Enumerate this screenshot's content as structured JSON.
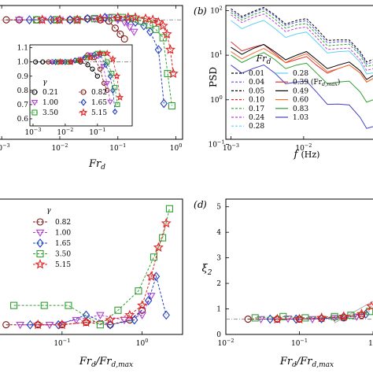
{
  "chart_data": [
    {
      "type": "scatter",
      "panel_label": "",
      "xlabel": "Fr",
      "xlabel_sub": "d",
      "xscale": "log",
      "xlim": [
        0.0008,
        1.3
      ],
      "ylim": [
        0.0,
        1.12
      ],
      "x_ticks": [
        {
          "base": "10",
          "exp": "−3"
        },
        {
          "base": "10",
          "exp": "−2"
        },
        {
          "base": "10",
          "exp": "−1"
        },
        {
          "base": "10",
          "exp": "0"
        }
      ],
      "reference_line": 1.0,
      "series": [
        {
          "marker": "circle",
          "color": "#7a1010",
          "x": [
            0.0012,
            0.002,
            0.004,
            0.008,
            0.015,
            0.03,
            0.05,
            0.07,
            0.09,
            0.11,
            0.13
          ],
          "y": [
            1.0,
            1.0,
            1.0,
            1.0,
            1.0,
            1.01,
            1.0,
            0.99,
            0.93,
            0.88,
            0.84
          ]
        },
        {
          "marker": "triangle",
          "color": "#b040d0",
          "x": [
            0.002,
            0.005,
            0.01,
            0.02,
            0.04,
            0.07,
            0.1,
            0.13,
            0.16,
            0.19
          ],
          "y": [
            1.0,
            1.0,
            1.0,
            1.0,
            1.01,
            1.02,
            1.0,
            0.98,
            0.94,
            0.9
          ]
        },
        {
          "marker": "diamond",
          "color": "#2040c0",
          "x": [
            0.003,
            0.007,
            0.015,
            0.03,
            0.06,
            0.1,
            0.15,
            0.2,
            0.28,
            0.36,
            0.5,
            0.62
          ],
          "y": [
            1.0,
            1.0,
            1.0,
            1.01,
            1.02,
            1.02,
            1.0,
            0.98,
            0.95,
            0.9,
            0.75,
            0.3
          ]
        },
        {
          "marker": "square",
          "color": "#30a030",
          "x": [
            0.004,
            0.009,
            0.02,
            0.04,
            0.08,
            0.12,
            0.18,
            0.25,
            0.35,
            0.45,
            0.6,
            0.72,
            0.85
          ],
          "y": [
            1.0,
            1.0,
            1.0,
            1.01,
            1.02,
            1.02,
            1.01,
            0.99,
            0.96,
            0.92,
            0.85,
            0.55,
            0.28
          ]
        },
        {
          "marker": "star",
          "color": "#e02020",
          "x": [
            0.005,
            0.01,
            0.02,
            0.05,
            0.1,
            0.15,
            0.2,
            0.3,
            0.4,
            0.5,
            0.6,
            0.7,
            0.8,
            0.9
          ],
          "y": [
            1.0,
            1.0,
            1.0,
            1.01,
            1.02,
            1.02,
            1.02,
            1.01,
            1.0,
            0.98,
            0.95,
            0.88,
            0.75,
            0.55
          ]
        }
      ]
    },
    {
      "type": "line",
      "panel_label": "b",
      "xlabel": "f",
      "xlabel_units": "(Hz)",
      "ylabel": "PSD",
      "xscale": "log",
      "yscale": "log",
      "xlim": [
        0.00085,
        0.09
      ],
      "ylim": [
        0.13,
        130
      ],
      "x_ticks": [
        {
          "base": "10",
          "exp": "−3"
        },
        {
          "base": "10",
          "exp": "−2"
        }
      ],
      "y_ticks": [
        {
          "base": "10",
          "exp": "−1"
        },
        {
          "base": "10",
          "exp": "0"
        },
        {
          "base": "10",
          "exp": "1"
        },
        {
          "base": "10",
          "exp": "2"
        }
      ],
      "legend_title": "Fr",
      "legend_title_sub": "d",
      "legend_col1": [
        {
          "label": "0.01",
          "color": "#000000",
          "dash": true
        },
        {
          "label": "0.04",
          "color": "#5050e0",
          "dash": true
        },
        {
          "label": "0.05",
          "color": "#000000",
          "dash": true
        },
        {
          "label": "0.10",
          "color": "#e02020",
          "dash": true
        },
        {
          "label": "0.17",
          "color": "#30a030",
          "dash": true
        },
        {
          "label": "0.24",
          "color": "#c040d0",
          "dash": true
        },
        {
          "label": "0.28",
          "color": "#60d0f0",
          "dash": true
        }
      ],
      "legend_col2": [
        {
          "label": "0.28",
          "color": "#60d0f0",
          "dash": false
        },
        {
          "label": "0.39 (Fr",
          "label_sub": "d,max",
          "label_end": ")",
          "color": "#e03030",
          "dash": false
        },
        {
          "label": "0.49",
          "color": "#000000",
          "dash": false
        },
        {
          "label": "0.60",
          "color": "#f07030",
          "dash": false
        },
        {
          "label": "0.83",
          "color": "#30a030",
          "dash": false
        },
        {
          "label": "1.03",
          "color": "#4040c0",
          "dash": false
        }
      ],
      "series": [
        {
          "color": "#000000",
          "dash": true,
          "x": [
            0.001,
            0.002,
            0.004,
            0.008,
            0.015,
            0.03,
            0.06,
            0.09
          ],
          "y": [
            110,
            95,
            80,
            60,
            40,
            22,
            12,
            8
          ]
        },
        {
          "color": "#5050e0",
          "dash": true,
          "x": [
            0.001,
            0.002,
            0.004,
            0.008,
            0.015,
            0.03,
            0.06,
            0.09
          ],
          "y": [
            100,
            90,
            75,
            55,
            35,
            20,
            11,
            7
          ]
        },
        {
          "color": "#30a030",
          "dash": true,
          "x": [
            0.001,
            0.002,
            0.004,
            0.008,
            0.015,
            0.03,
            0.06,
            0.09
          ],
          "y": [
            90,
            80,
            65,
            48,
            30,
            17,
            10,
            6
          ]
        },
        {
          "color": "#c040d0",
          "dash": true,
          "x": [
            0.001,
            0.002,
            0.004,
            0.008,
            0.015,
            0.03,
            0.06,
            0.09
          ],
          "y": [
            80,
            70,
            55,
            40,
            25,
            14,
            8,
            5
          ]
        },
        {
          "color": "#60d0f0",
          "dash": false,
          "x": [
            0.001,
            0.002,
            0.004,
            0.008,
            0.015,
            0.03,
            0.06,
            0.09
          ],
          "y": [
            60,
            50,
            40,
            30,
            20,
            12,
            7,
            4
          ]
        },
        {
          "color": "#e03030",
          "dash": false,
          "x": [
            0.001,
            0.002,
            0.004,
            0.008,
            0.015,
            0.03,
            0.06,
            0.09
          ],
          "y": [
            20,
            15,
            11,
            8,
            6,
            5,
            4,
            3
          ]
        },
        {
          "color": "#000000",
          "dash": false,
          "x": [
            0.001,
            0.002,
            0.004,
            0.008,
            0.015,
            0.03,
            0.06,
            0.09
          ],
          "y": [
            15,
            14,
            12,
            10,
            8,
            6,
            4.5,
            3.5
          ]
        },
        {
          "color": "#f07030",
          "dash": false,
          "x": [
            0.001,
            0.002,
            0.004,
            0.008,
            0.015,
            0.03,
            0.06,
            0.09
          ],
          "y": [
            12,
            11,
            10,
            9,
            7,
            5,
            4,
            3
          ]
        },
        {
          "color": "#30a030",
          "dash": false,
          "x": [
            0.001,
            0.002,
            0.004,
            0.008,
            0.015,
            0.03,
            0.06,
            0.09
          ],
          "y": [
            10,
            9,
            8,
            6,
            4,
            2.5,
            1.5,
            1.0
          ]
        },
        {
          "color": "#4040c0",
          "dash": false,
          "x": [
            0.001,
            0.002,
            0.004,
            0.008,
            0.015,
            0.03,
            0.06,
            0.09
          ],
          "y": [
            6,
            5,
            4,
            2.5,
            1.5,
            0.8,
            0.4,
            0.25
          ]
        }
      ]
    },
    {
      "type": "scatter",
      "panel_label": "",
      "xlabel": "Fr",
      "xlabel_sub": "d",
      "xlabel_denom": "Fr",
      "xlabel_denom_sub": "d,max",
      "xscale": "log",
      "xlim": [
        0.015,
        3.2
      ],
      "ylim": [
        0.8,
        3.6
      ],
      "x_ticks": [
        {
          "base": "10",
          "exp": "−1"
        },
        {
          "base": "10",
          "exp": "0"
        }
      ],
      "legend_title": "γ",
      "series": [
        {
          "label": "0.82",
          "marker": "circle",
          "color": "#7a1010",
          "x": [
            0.02,
            0.05,
            0.1,
            0.2,
            0.4,
            0.7,
            1.0
          ],
          "y": [
            1.0,
            1.0,
            1.0,
            1.05,
            1.0,
            1.1,
            1.3
          ]
        },
        {
          "label": "1.00",
          "marker": "triangle",
          "color": "#b040d0",
          "x": [
            0.03,
            0.07,
            0.15,
            0.3,
            0.6,
            1.0,
            1.3
          ],
          "y": [
            1.0,
            1.0,
            1.1,
            1.2,
            1.1,
            1.2,
            1.6
          ]
        },
        {
          "label": "1.65",
          "marker": "diamond",
          "color": "#2040c0",
          "x": [
            0.04,
            0.09,
            0.2,
            0.4,
            0.8,
            1.2,
            1.5,
            2.0
          ],
          "y": [
            1.0,
            1.0,
            1.2,
            1.0,
            1.1,
            1.5,
            2.0,
            1.2
          ]
        },
        {
          "label": "3.50",
          "marker": "square",
          "color": "#30a030",
          "x": [
            0.025,
            0.06,
            0.12,
            0.3,
            0.5,
            0.9,
            1.4,
            1.8,
            2.2
          ],
          "y": [
            1.4,
            1.4,
            1.4,
            1.0,
            1.3,
            1.7,
            2.4,
            2.8,
            3.4
          ]
        },
        {
          "label": "5.15",
          "marker": "star",
          "color": "#e02020",
          "x": [
            0.05,
            0.1,
            0.2,
            0.4,
            0.7,
            1.0,
            1.3,
            1.6,
            2.0
          ],
          "y": [
            1.0,
            1.0,
            1.05,
            1.1,
            1.2,
            1.4,
            2.0,
            2.6,
            3.1
          ]
        }
      ]
    },
    {
      "type": "scatter",
      "panel_label": "d",
      "xlabel": "Fr",
      "xlabel_sub": "d",
      "xlabel_denom": "Fr",
      "xlabel_denom_sub": "d,max",
      "ylabel": "ξ",
      "ylabel_sub": "2",
      "xscale": "log",
      "xlim": [
        0.01,
        1.0
      ],
      "ylim": [
        0,
        5.3
      ],
      "x_ticks": [
        {
          "base": "10",
          "exp": "−2"
        },
        {
          "base": "10",
          "exp": "−1"
        },
        {
          "base": "1",
          "exp": ""
        }
      ],
      "y_ticks": [
        "0",
        "1",
        "2",
        "3",
        "4",
        "5"
      ],
      "reference_line": 0.6,
      "series": [
        {
          "marker": "circle",
          "color": "#7a1010",
          "x": [
            0.02,
            0.05,
            0.1,
            0.2,
            0.4,
            0.7
          ],
          "y": [
            0.6,
            0.6,
            0.6,
            0.62,
            0.65,
            0.75
          ]
        },
        {
          "marker": "triangle",
          "color": "#b040d0",
          "x": [
            0.03,
            0.07,
            0.15,
            0.3,
            0.6
          ],
          "y": [
            0.6,
            0.62,
            0.6,
            0.65,
            0.7
          ]
        },
        {
          "marker": "diamond",
          "color": "#2040c0",
          "x": [
            0.04,
            0.09,
            0.2,
            0.4,
            0.8
          ],
          "y": [
            0.6,
            0.6,
            0.62,
            0.7,
            0.8
          ]
        },
        {
          "marker": "square",
          "color": "#30a030",
          "x": [
            0.025,
            0.06,
            0.12,
            0.3,
            0.5,
            0.9
          ],
          "y": [
            0.65,
            0.7,
            0.65,
            0.7,
            0.75,
            0.9
          ]
        },
        {
          "marker": "star",
          "color": "#e02020",
          "x": [
            0.05,
            0.1,
            0.2,
            0.4,
            0.7,
            0.95
          ],
          "y": [
            0.6,
            0.6,
            0.65,
            0.7,
            0.8,
            1.1
          ]
        }
      ]
    }
  ],
  "inset": {
    "xscale": "log",
    "xlim": [
      0.0008,
      1.2
    ],
    "ylim": [
      0.55,
      1.12
    ],
    "x_ticks": [
      {
        "base": "10",
        "exp": "−3"
      },
      {
        "base": "10",
        "exp": "−2"
      },
      {
        "base": "10",
        "exp": "−1"
      }
    ],
    "y_ticks": [
      "0.6",
      "0.7",
      "0.8",
      "0.9",
      "1.0",
      "1.1"
    ],
    "reference_line": 1.0,
    "legend_title": "γ",
    "legend": [
      {
        "label": "0.21",
        "marker": "circle",
        "color": "#000000"
      },
      {
        "label": "0.82",
        "marker": "circle",
        "color": "#7a1010"
      },
      {
        "label": "1.00",
        "marker": "triangle",
        "color": "#b040d0"
      },
      {
        "label": "1.65",
        "marker": "diamond",
        "color": "#2040c0"
      },
      {
        "label": "3.50",
        "marker": "square",
        "color": "#30a030"
      },
      {
        "label": "5.15",
        "marker": "star",
        "color": "#e02020"
      }
    ],
    "series": [
      {
        "marker": "circle",
        "color": "#000000",
        "x": [
          0.0012,
          0.002,
          0.004,
          0.008,
          0.015,
          0.03,
          0.05,
          0.07,
          0.1
        ],
        "y": [
          1.0,
          1.0,
          1.0,
          1.0,
          1.0,
          1.0,
          0.98,
          0.95,
          0.9
        ]
      },
      {
        "marker": "circle",
        "color": "#7a1010",
        "x": [
          0.003,
          0.006,
          0.012,
          0.025,
          0.05,
          0.08,
          0.12,
          0.16,
          0.2
        ],
        "y": [
          1.0,
          1.0,
          1.0,
          1.01,
          1.05,
          1.03,
          0.95,
          0.85,
          0.8
        ]
      },
      {
        "marker": "triangle",
        "color": "#b040d0",
        "x": [
          0.004,
          0.008,
          0.016,
          0.03,
          0.06,
          0.1,
          0.15,
          0.2,
          0.25
        ],
        "y": [
          1.0,
          1.0,
          1.0,
          1.02,
          1.05,
          1.04,
          0.97,
          0.85,
          0.72
        ]
      },
      {
        "marker": "diamond",
        "color": "#2040c0",
        "x": [
          0.005,
          0.01,
          0.02,
          0.04,
          0.08,
          0.12,
          0.18,
          0.25,
          0.3,
          0.35
        ],
        "y": [
          1.0,
          1.0,
          1.01,
          1.03,
          1.05,
          1.05,
          0.98,
          0.9,
          0.8,
          0.65
        ]
      },
      {
        "marker": "square",
        "color": "#30a030",
        "x": [
          0.006,
          0.012,
          0.025,
          0.05,
          0.1,
          0.15,
          0.2,
          0.28,
          0.35,
          0.42
        ],
        "y": [
          1.0,
          1.0,
          1.01,
          1.03,
          1.06,
          1.06,
          1.0,
          0.92,
          0.82,
          0.7
        ]
      },
      {
        "marker": "star",
        "color": "#e02020",
        "x": [
          0.007,
          0.015,
          0.03,
          0.06,
          0.12,
          0.2,
          0.3,
          0.4,
          0.5
        ],
        "y": [
          1.0,
          1.0,
          1.01,
          1.03,
          1.06,
          1.06,
          1.02,
          0.9,
          0.75
        ]
      }
    ]
  }
}
